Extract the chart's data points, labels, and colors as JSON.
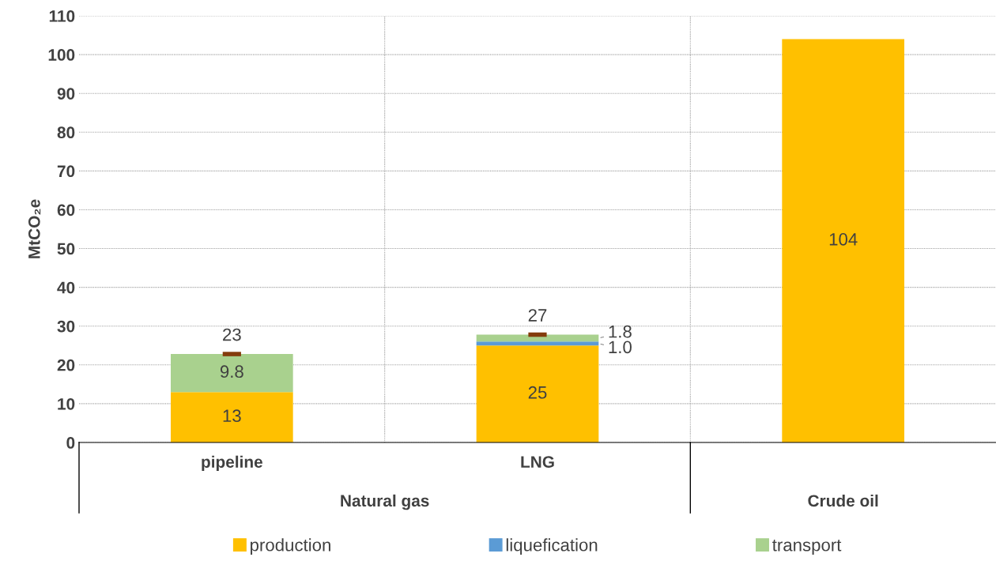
{
  "chart_data": {
    "type": "bar",
    "stacked": true,
    "ylabel": "MtCO₂e",
    "categories": [
      "pipeline",
      "LNG",
      null
    ],
    "series": [
      {
        "name": "production",
        "color": "#ffc000",
        "values": [
          13,
          25,
          104
        ],
        "value_labels": [
          "13",
          "25",
          "104"
        ]
      },
      {
        "name": "liquefication",
        "color": "#5b9bd5",
        "values": [
          null,
          1.0,
          null
        ],
        "value_labels": [
          null,
          "1.0",
          null
        ]
      },
      {
        "name": "transport",
        "color": "#a9d18e",
        "values": [
          9.8,
          1.8,
          null
        ],
        "value_labels": [
          "9.8",
          "1.8",
          null
        ]
      }
    ],
    "totals": [
      "23",
      "27",
      null
    ],
    "ylim": [
      0,
      110
    ],
    "yticks": [
      0,
      10,
      20,
      30,
      40,
      50,
      60,
      70,
      80,
      90,
      100,
      110
    ],
    "grid": true,
    "legend": "bottom",
    "annotations": [
      "Natural gas",
      "Crude oil"
    ]
  }
}
